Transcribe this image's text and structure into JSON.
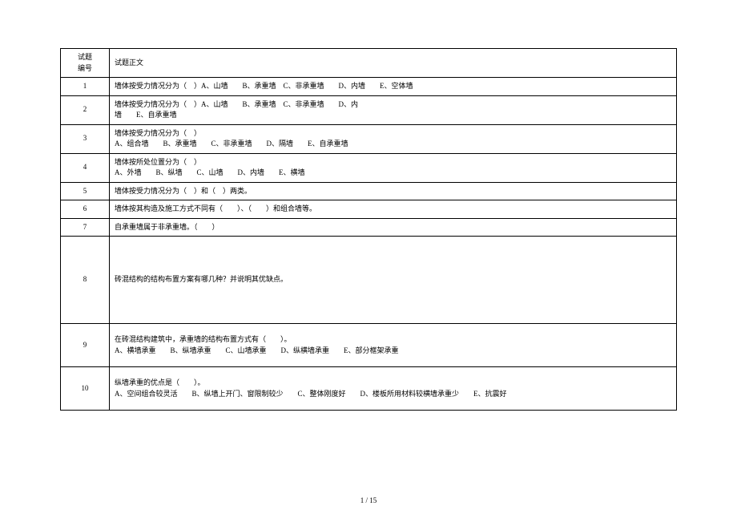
{
  "header": {
    "col_id": "试题\n编号",
    "col_body": "试题正文"
  },
  "rows": [
    {
      "id": "1",
      "body": "墙体按受力情况分为（　）A、山墙　　B、承重墙　C、非承重墙　　D、内墙　　E、空体墙"
    },
    {
      "id": "2",
      "body": "墙体按受力情况分为（　）A、山墙　　B、承重墙　C、非承重墙　　D、内\n墙　　E、自承重墙"
    },
    {
      "id": "3",
      "body": "墙体按受力情况分为（　）\nA、组合墙　　B、承重墙　　C、非承重墙　　D、隔墙　　E、自承重墙"
    },
    {
      "id": "4",
      "body": "墙体按所处位置分为（　）\nA、外墙　　B、纵墙　　C、山墙　　D、内墙　　E、横墙"
    },
    {
      "id": "5",
      "body": "墙体按受力情况分为（　）和（　）两类。"
    },
    {
      "id": "6",
      "body": "墙体按其构造及施工方式不同有（　　）、（　　）和组合墙等。"
    },
    {
      "id": "7",
      "body": "自承重墙属于非承重墙。（　　）"
    },
    {
      "id": "8",
      "body": "砖混结构的结构布置方案有哪几种？并说明其优缺点。"
    },
    {
      "id": "9",
      "body": "在砖混结构建筑中，承重墙的结构布置方式有（　　）。\nA、横墙承重　　B、纵墙承重　　C、山墙承重　　D、纵横墙承重　　E、部分框架承重"
    },
    {
      "id": "10",
      "body": "纵墙承重的优点是（　　）。\nA、空间组合较灵活　　B、纵墙上开门、窗限制较少　　C、整体刚度好　　D、楼板所用材料较横墙承重少　　E、抗震好"
    }
  ],
  "footer": "1 / 15",
  "row_heights": {
    "8": "tall",
    "9": "med",
    "10": "med"
  }
}
